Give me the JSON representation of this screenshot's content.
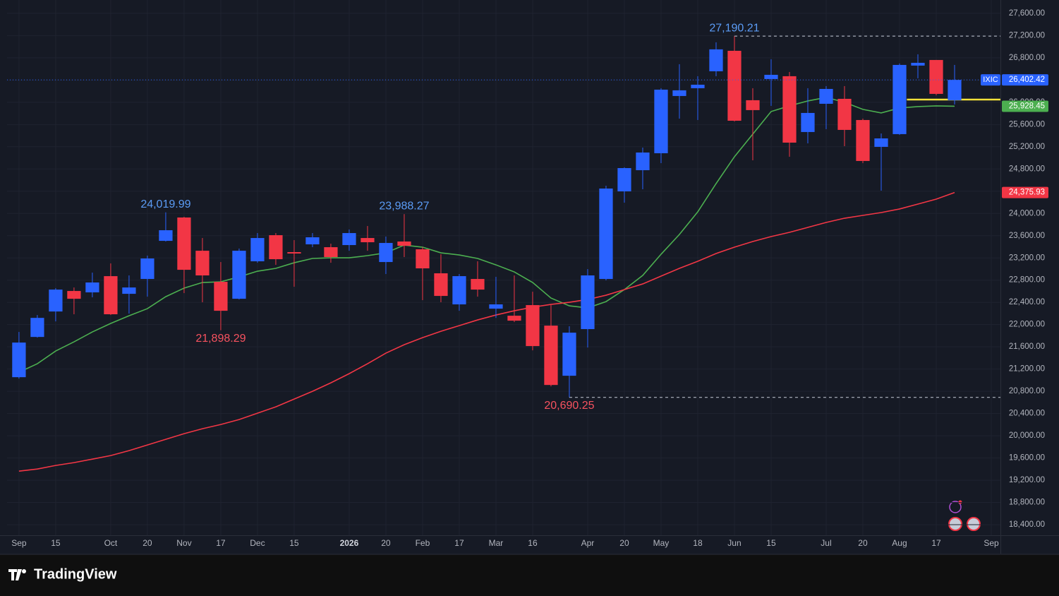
{
  "chart_data": {
    "type": "candlestick",
    "xlim": [
      -0.65,
      53.5
    ],
    "xticks": [
      {
        "value": 0,
        "label": "Sep"
      },
      {
        "value": 2,
        "label": "15"
      },
      {
        "value": 5,
        "label": "Oct"
      },
      {
        "value": 7,
        "label": "20"
      },
      {
        "value": 9,
        "label": "Nov"
      },
      {
        "value": 11,
        "label": "17"
      },
      {
        "value": 13,
        "label": "Dec"
      },
      {
        "value": 15,
        "label": "15"
      },
      {
        "value": 18,
        "label": "2026"
      },
      {
        "value": 20,
        "label": "20"
      },
      {
        "value": 22,
        "label": "Feb"
      },
      {
        "value": 24,
        "label": "17"
      },
      {
        "value": 26,
        "label": "Mar"
      },
      {
        "value": 28,
        "label": "16"
      },
      {
        "value": 31,
        "label": "Apr"
      },
      {
        "value": 33,
        "label": "20"
      },
      {
        "value": 35,
        "label": "May"
      },
      {
        "value": 37,
        "label": "18"
      },
      {
        "value": 39,
        "label": "Jun"
      },
      {
        "value": 41,
        "label": "15"
      },
      {
        "value": 44,
        "label": "Jul"
      },
      {
        "value": 46,
        "label": "20"
      },
      {
        "value": 48,
        "label": "Aug"
      },
      {
        "value": 50,
        "label": "17"
      },
      {
        "value": 53,
        "label": "Sep"
      }
    ],
    "ylim": [
      18210,
      27840
    ],
    "yticks": [
      {
        "value": 18400,
        "label": "18,400.00"
      },
      {
        "value": 18800,
        "label": "18,800.00"
      },
      {
        "value": 19200,
        "label": "19,200.00"
      },
      {
        "value": 19600,
        "label": "19,600.00"
      },
      {
        "value": 20000,
        "label": "20,000.00"
      },
      {
        "value": 20400,
        "label": "20,400.00"
      },
      {
        "value": 20800,
        "label": "20,800.00"
      },
      {
        "value": 21200,
        "label": "21,200.00"
      },
      {
        "value": 21600,
        "label": "21,600.00"
      },
      {
        "value": 22000,
        "label": "22,000.00"
      },
      {
        "value": 22400,
        "label": "22,400.00"
      },
      {
        "value": 22800,
        "label": "22,800.00"
      },
      {
        "value": 23200,
        "label": "23,200.00"
      },
      {
        "value": 23600,
        "label": "23,600.00"
      },
      {
        "value": 24000,
        "label": "24,000.00"
      },
      {
        "value": 24400,
        "label": "24,400.00"
      },
      {
        "value": 24800,
        "label": "24,800.00"
      },
      {
        "value": 25200,
        "label": "25,200.00"
      },
      {
        "value": 25600,
        "label": "25,600.00"
      },
      {
        "value": 26000,
        "label": "26,000.00"
      },
      {
        "value": 26400,
        "label": "26,400.00"
      },
      {
        "value": 26800,
        "label": "26,800.00"
      },
      {
        "value": 27200,
        "label": "27,200.00"
      },
      {
        "value": 27600,
        "label": "27,600.00"
      }
    ],
    "grid": true,
    "up_color": "#2962ff",
    "down_color": "#f23645",
    "series": [
      {
        "name": "IXIC",
        "open": [
          21054,
          21778,
          22236,
          22605,
          22580,
          22872,
          22554,
          22821,
          23507,
          23927,
          23329,
          22770,
          22465,
          23139,
          23609,
          23304,
          23444,
          23393,
          23431,
          23558,
          23126,
          23495,
          23355,
          22923,
          22364,
          22821,
          22287,
          22160,
          22351,
          21982,
          21080,
          21919,
          22821,
          24397,
          24778,
          25083,
          26113,
          26253,
          26558,
          26926,
          26037,
          26418,
          26469,
          25465,
          25973,
          26062,
          25681,
          25198,
          25427,
          26660,
          26761,
          26037
        ],
        "high": [
          21868,
          22172,
          22656,
          22668,
          22935,
          23101,
          22885,
          23241,
          24019.99,
          23940,
          23558,
          23126,
          23368,
          23647,
          23647,
          23520,
          23647,
          23456,
          23711,
          23774,
          23584,
          23988.27,
          23393,
          23266,
          22910,
          23139,
          22859,
          22885,
          22592,
          22351,
          21970,
          22999,
          24499,
          24829,
          25185,
          26253,
          26685,
          26469,
          27079,
          27190.21,
          26253,
          26774,
          26545,
          26253,
          26291,
          26291,
          25706,
          25439,
          26698,
          26863,
          26761,
          26672
        ],
        "low": [
          21029,
          21766,
          22058,
          22186,
          22491,
          22173,
          22198,
          22503,
          23495,
          22567,
          22402,
          21898.29,
          22452,
          23113,
          23075,
          22681,
          23393,
          23113,
          23329,
          23329,
          22910,
          23215,
          22440,
          22402,
          22249,
          22503,
          22121,
          22046,
          21537,
          20889,
          20690.25,
          21588,
          22796,
          24194,
          24435,
          24905,
          25706,
          25681,
          26469,
          25655,
          24956,
          25935,
          25020,
          25261,
          25516,
          25210,
          24905,
          24410,
          25414,
          26431,
          26126,
          25960
        ],
        "close": [
          21677,
          22121,
          22630,
          22465,
          22758,
          22186,
          22668,
          23190,
          23698,
          22986,
          22885,
          22249,
          23329,
          23558,
          23177,
          23279,
          23571,
          23215,
          23647,
          23482,
          23469,
          23418,
          23012,
          22516,
          22872,
          22630,
          22364,
          22071,
          21614,
          20914,
          21855,
          22885,
          24448,
          24816,
          25096,
          26227,
          26215,
          26316,
          26952,
          25668,
          25859,
          26494,
          25274,
          25808,
          26240,
          25503,
          24944,
          25350,
          26672,
          26710,
          26151,
          26402.42
        ]
      }
    ],
    "overlays": [
      {
        "color": "#4caf50",
        "values": [
          21143,
          21296,
          21525,
          21690,
          21868,
          22021,
          22160,
          22287,
          22503,
          22656,
          22758,
          22770,
          22859,
          22961,
          23012,
          23113,
          23190,
          23202,
          23202,
          23241,
          23291,
          23431,
          23393,
          23291,
          23253,
          23190,
          23075,
          22948,
          22758,
          22478,
          22338,
          22300,
          22414,
          22630,
          22885,
          23266,
          23622,
          24028,
          24537,
          25020,
          25427,
          25834,
          25935,
          26024,
          26088,
          25999,
          25872,
          25808,
          25897,
          25922,
          25935,
          25928.45
        ]
      },
      {
        "color": "#f23645",
        "values": [
          19364,
          19402,
          19466,
          19517,
          19580,
          19644,
          19733,
          19834,
          19936,
          20038,
          20127,
          20203,
          20292,
          20406,
          20521,
          20661,
          20800,
          20953,
          21118,
          21296,
          21487,
          21639,
          21766,
          21880,
          21982,
          22084,
          22173,
          22249,
          22313,
          22364,
          22402,
          22452,
          22529,
          22630,
          22732,
          22872,
          23012,
          23139,
          23279,
          23393,
          23495,
          23584,
          23660,
          23749,
          23838,
          23914,
          23965,
          24016,
          24080,
          24168,
          24257,
          24375.93
        ]
      }
    ],
    "annotations": [
      {
        "label": "24,019.99",
        "value": 24019.99,
        "color": "#5b9cf6"
      },
      {
        "label": "21,898.29",
        "value": 21898.29,
        "color": "#f7525f"
      },
      {
        "label": "23,988.27",
        "value": 23988.27,
        "color": "#5b9cf6"
      },
      {
        "label": "20,690.25",
        "value": 20690.25,
        "color": "#f7525f",
        "guide": true
      },
      {
        "label": "27,190.21",
        "value": 27190.21,
        "color": "#5b9cf6",
        "guide": true
      }
    ],
    "horizontal_lines": [
      {
        "value": 26049,
        "start": 48.4,
        "color": "#f5e23a"
      }
    ],
    "price_labels": [
      {
        "name": "IXIC",
        "label": "26,402.42",
        "value": 26402.42,
        "color": "#2962ff",
        "dotted": true
      },
      {
        "label": "25,928.45",
        "value": 25928.45,
        "color": "#4caf50"
      },
      {
        "label": "24,375.93",
        "value": 24375.93,
        "color": "#f23645"
      }
    ]
  },
  "brand": "TradingView"
}
